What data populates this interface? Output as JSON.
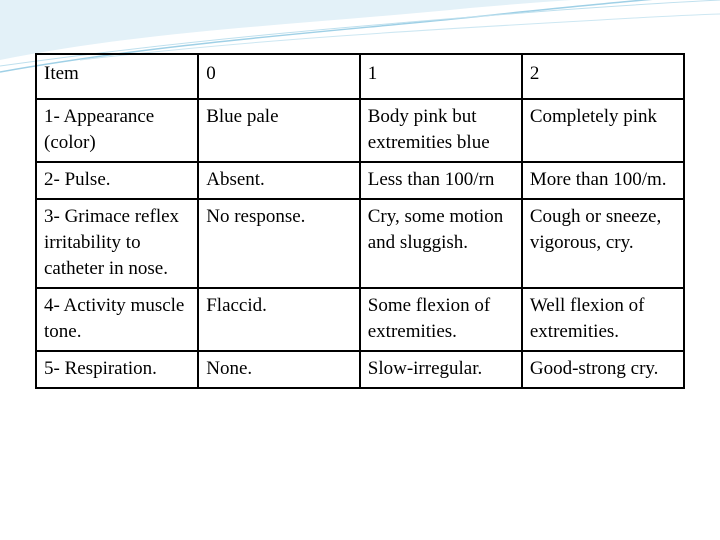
{
  "table": {
    "header": [
      "Item",
      "0",
      "1",
      "2"
    ],
    "rows": [
      [
        "1- Appearance (color)",
        "Blue pale",
        "Body pink but extremities blue",
        "Completely pink"
      ],
      [
        "2- Pulse.",
        "Absent.",
        "Less than 100/rn",
        "More than 100/m."
      ],
      [
        "3- Grimace reflex irritability to catheter in nose.",
        "No response.",
        "Cry, some motion and sluggish.",
        "Cough or sneeze, vigorous, cry."
      ],
      [
        "4- Activity muscle tone.",
        "Flaccid.",
        "Some flexion of extremities.",
        "Well flexion of extremities."
      ],
      [
        "5- Respiration.",
        "None.",
        "Slow-irregular.",
        "Good-strong cry."
      ]
    ]
  }
}
